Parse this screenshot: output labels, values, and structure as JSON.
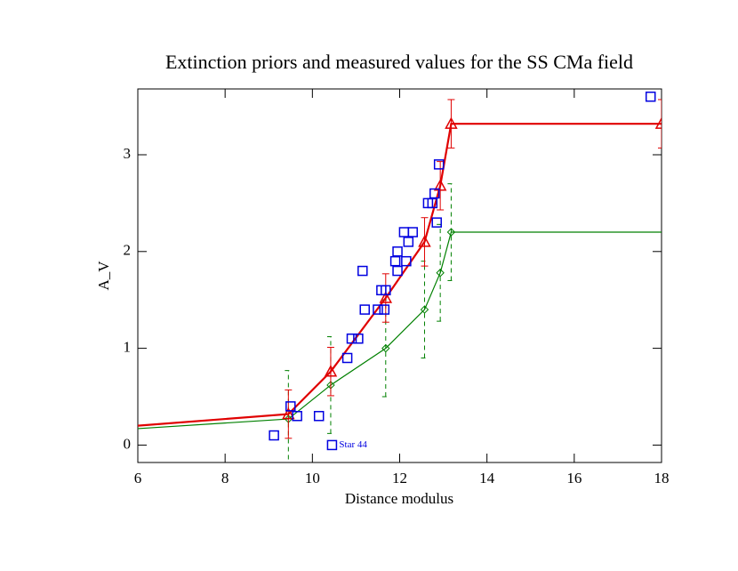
{
  "chart_data": {
    "type": "line",
    "title": "Extinction priors and measured values for the SS CMa field",
    "x_label": "Distance modulus",
    "y_label": "A_V",
    "xlim": [
      6,
      18
    ],
    "ylim": [
      -0.18,
      3.68
    ],
    "xticks": [
      6,
      8,
      10,
      12,
      14,
      16,
      18
    ],
    "yticks": [
      0,
      1,
      2,
      3
    ],
    "series": [
      {
        "color": "#008000",
        "marker": "diamond",
        "dashed_errors": true,
        "line": true,
        "x": [
          6,
          9.45,
          10.42,
          11.68,
          12.57,
          12.93,
          13.18,
          18
        ],
        "values": [
          0.17,
          0.27,
          0.62,
          1.0,
          1.4,
          1.78,
          2.2,
          2.2
        ],
        "errors": [
          null,
          0.5,
          0.5,
          0.5,
          0.5,
          0.5,
          0.5,
          null
        ]
      },
      {
        "color": "#e00000",
        "marker": "triangle",
        "dashed_errors": false,
        "line": true,
        "x": [
          6,
          9.45,
          10.42,
          11.68,
          12.57,
          12.93,
          13.18,
          18
        ],
        "values": [
          0.2,
          0.32,
          0.76,
          1.52,
          2.1,
          2.68,
          3.32,
          3.32
        ],
        "errors": [
          null,
          0.25,
          0.25,
          0.25,
          0.25,
          0.25,
          0.25,
          0.25
        ]
      },
      {
        "color": "#0000e0",
        "marker": "square",
        "line": false,
        "x": [
          9.12,
          9.5,
          9.65,
          10.15,
          10.45,
          10.8,
          10.9,
          11.05,
          11.15,
          11.2,
          11.5,
          11.58,
          11.68,
          11.65,
          11.9,
          11.95,
          11.95,
          12.1,
          12.15,
          12.2,
          12.3,
          12.65,
          12.75,
          12.8,
          12.85,
          12.9,
          17.75
        ],
        "values": [
          0.1,
          0.4,
          0.3,
          0.3,
          0.0,
          0.9,
          1.1,
          1.1,
          1.8,
          1.4,
          1.4,
          1.6,
          1.6,
          1.4,
          1.9,
          2.0,
          1.8,
          2.2,
          1.9,
          2.1,
          2.2,
          2.5,
          2.5,
          2.6,
          2.3,
          2.9,
          3.6
        ]
      }
    ],
    "annotations": [
      {
        "text": "Star 44",
        "x": 10.45,
        "y": 0.0,
        "color": "#0000e0"
      }
    ]
  }
}
